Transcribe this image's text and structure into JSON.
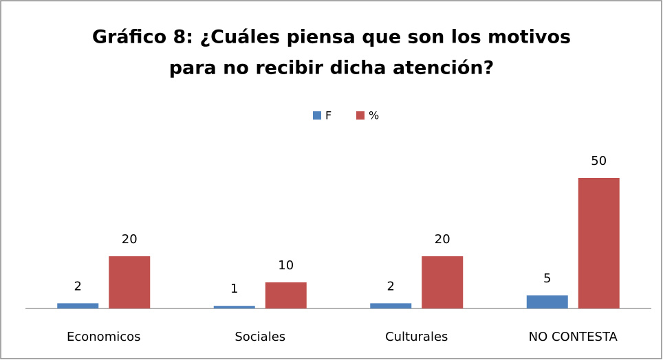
{
  "chart_data": {
    "type": "bar",
    "title": [
      "Gráfico 8: ¿Cuáles piensa que son los motivos",
      "para no recibir dicha atención?"
    ],
    "categories": [
      "Economicos",
      "Sociales",
      "Culturales",
      "NO CONTESTA"
    ],
    "series": [
      {
        "name": "F",
        "color": "#4f81bd",
        "values": [
          2,
          1,
          2,
          5
        ]
      },
      {
        "name": "%",
        "color": "#c0504d",
        "values": [
          20,
          10,
          20,
          50
        ]
      }
    ],
    "legend": "top"
  }
}
